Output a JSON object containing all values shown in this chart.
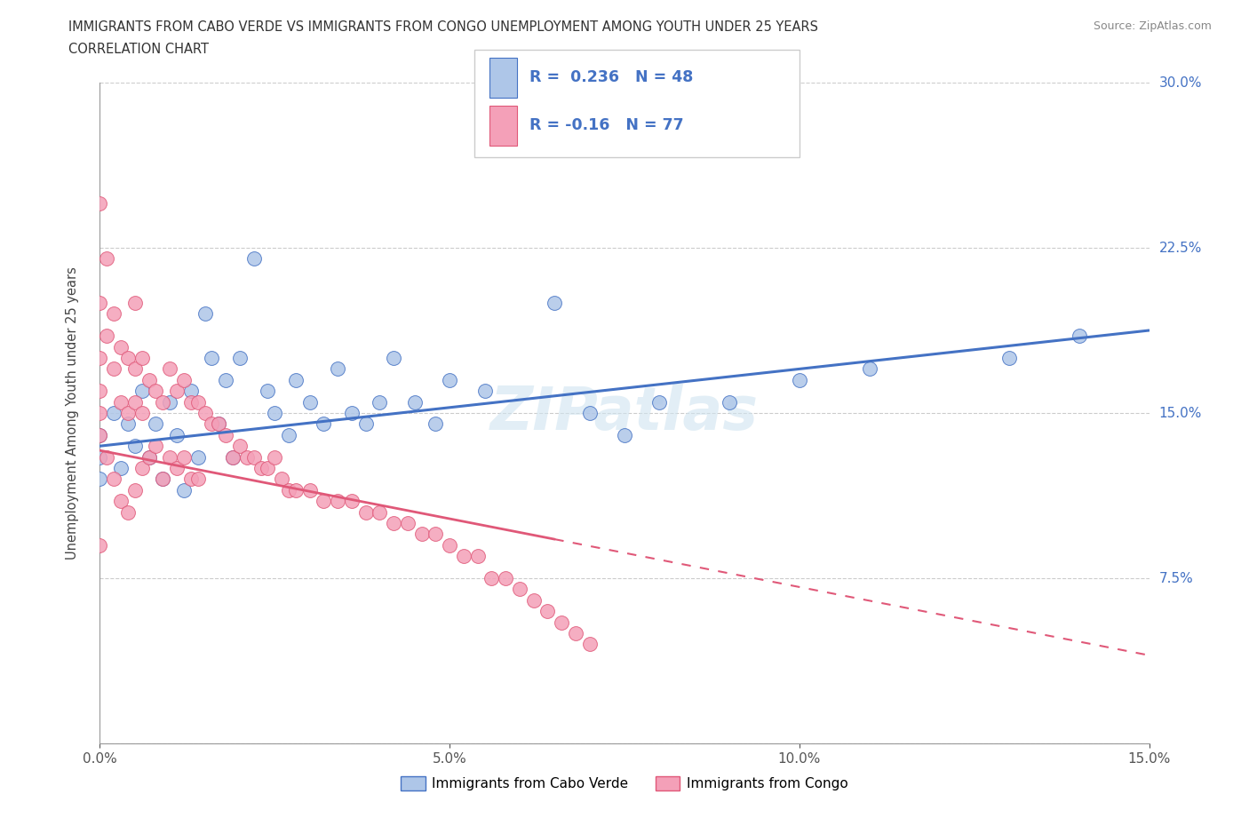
{
  "title_line1": "IMMIGRANTS FROM CABO VERDE VS IMMIGRANTS FROM CONGO UNEMPLOYMENT AMONG YOUTH UNDER 25 YEARS",
  "title_line2": "CORRELATION CHART",
  "source": "Source: ZipAtlas.com",
  "ylabel": "Unemployment Among Youth under 25 years",
  "xmin": 0.0,
  "xmax": 0.15,
  "ymin": 0.0,
  "ymax": 0.3,
  "legend_label1": "Immigrants from Cabo Verde",
  "legend_label2": "Immigrants from Congo",
  "r1": 0.236,
  "n1": 48,
  "r2": -0.16,
  "n2": 77,
  "color_blue": "#aec6e8",
  "color_pink": "#f4a0b8",
  "line_blue": "#4472c4",
  "line_pink": "#e05878",
  "watermark": "ZIPatlas"
}
